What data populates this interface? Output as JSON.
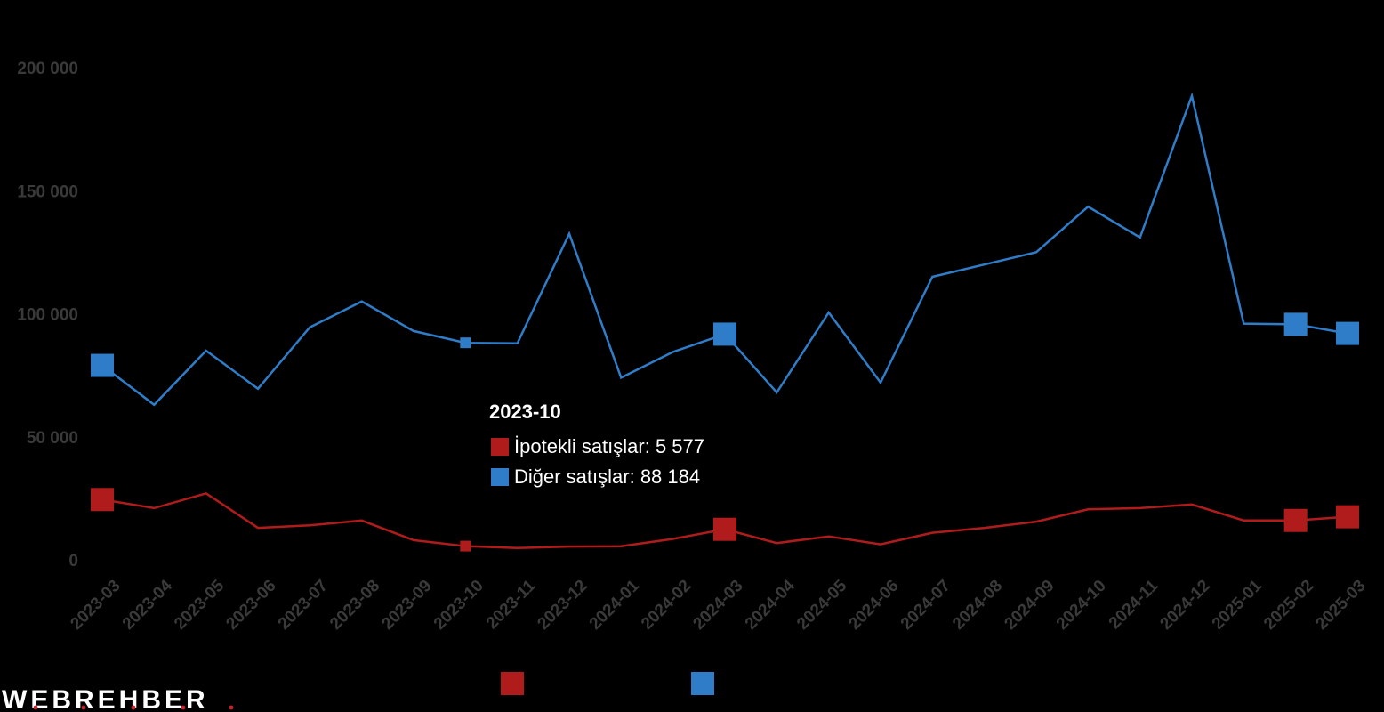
{
  "chart_data": {
    "type": "line",
    "categories": [
      "2023-03",
      "2023-04",
      "2023-05",
      "2023-06",
      "2023-07",
      "2023-08",
      "2023-09",
      "2023-10",
      "2023-11",
      "2023-12",
      "2024-01",
      "2024-02",
      "2024-03",
      "2024-04",
      "2024-05",
      "2024-06",
      "2024-07",
      "2024-08",
      "2024-09",
      "2024-10",
      "2024-11",
      "2024-12",
      "2025-01",
      "2025-02",
      "2025-03"
    ],
    "ylim": [
      0,
      200000
    ],
    "yticks": [
      0,
      50000,
      100000,
      150000,
      200000
    ],
    "ytick_labels": [
      "0",
      "50 000",
      "100 000",
      "150 000",
      "200 000"
    ],
    "grid": false,
    "series": [
      {
        "name": "İpotekli satışlar",
        "color": "#b01c1c",
        "values": [
          24500,
          21000,
          27000,
          13000,
          14000,
          16000,
          8000,
          5577,
          4800,
          5400,
          5500,
          8500,
          12400,
          6800,
          9500,
          6300,
          11000,
          13000,
          15500,
          20500,
          21000,
          22500,
          16000,
          16000,
          17500
        ]
      },
      {
        "name": "Diğer satışlar",
        "color": "#2f7dc8",
        "values": [
          79000,
          63000,
          85000,
          69500,
          94500,
          105000,
          93000,
          88184,
          88000,
          132500,
          74000,
          84500,
          91700,
          68000,
          100500,
          72000,
          115000,
          120000,
          125000,
          143500,
          131000,
          188500,
          96000,
          95700,
          92000
        ]
      }
    ],
    "highlight_markers_large": [
      0,
      12,
      23,
      24
    ]
  },
  "tooltip": {
    "title": "2023-10",
    "rows": [
      {
        "label": "İpotekli satışlar: 5 577",
        "color": "#b01c1c"
      },
      {
        "label": "Diğer satışlar: 88 184",
        "color": "#2f7dc8"
      }
    ],
    "index": 7
  },
  "legend": [
    {
      "color": "#b01c1c"
    },
    {
      "color": "#2f7dc8"
    }
  ],
  "logo": {
    "text": "WEBREHBER"
  }
}
